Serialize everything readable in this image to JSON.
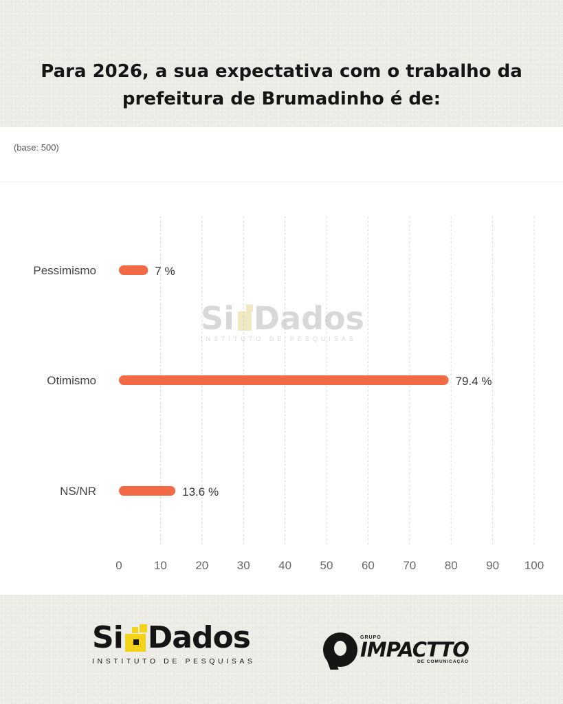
{
  "headline": "Para 2026, a sua expectativa com o trabalho da prefeitura de Brumadinho é de:",
  "base_note": "(base: 500)",
  "colors": {
    "bar": "#f26a45",
    "grid": "#d9d9d9",
    "label": "#444444"
  },
  "chart_data": {
    "type": "bar",
    "orientation": "horizontal",
    "title": "",
    "xlabel": "",
    "ylabel": "",
    "categories": [
      "Pessimismo",
      "Otimismo",
      "NS/NR"
    ],
    "values": [
      7,
      79.4,
      13.6
    ],
    "value_labels": [
      "7 %",
      "79.4 %",
      "13.6 %"
    ],
    "xlim": [
      0,
      100
    ],
    "x_ticks": [
      0,
      10,
      20,
      30,
      40,
      50,
      60,
      70,
      80,
      90,
      100
    ],
    "grid": "vertical dashed"
  },
  "watermark": {
    "brand": "SiGDados",
    "left": "Si",
    "right": "Dados",
    "tagline": "INSTITUTO DE PESQUISAS"
  },
  "footer": {
    "sigdados": {
      "left": "Si",
      "right": "Dados",
      "tagline": "INSTITUTO DE PESQUISAS"
    },
    "impactto": {
      "top": "GRUPO",
      "name": "IMPACTTO",
      "sub": "DE COMUNICAÇÃO"
    }
  }
}
